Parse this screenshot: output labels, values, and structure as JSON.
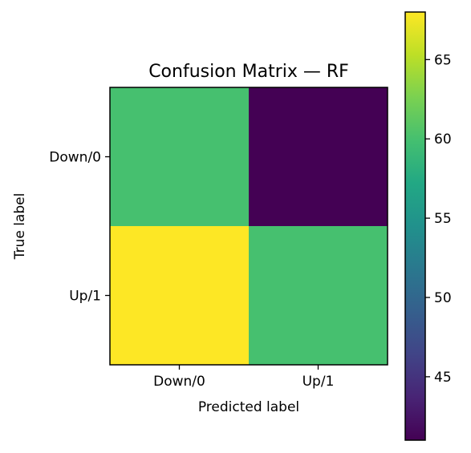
{
  "chart_data": {
    "type": "heatmap",
    "title": "Confusion Matrix — RF",
    "xlabel": "Predicted label",
    "ylabel": "True label",
    "x_categories": [
      "Down/0",
      "Up/1"
    ],
    "y_categories": [
      "Down/0",
      "Up/1"
    ],
    "values": [
      [
        60,
        41
      ],
      [
        68,
        60
      ]
    ],
    "colormap": "viridis",
    "colorbar": {
      "vmin": 41,
      "vmax": 68,
      "ticks": [
        45,
        50,
        55,
        60,
        65
      ]
    },
    "grid": false
  }
}
